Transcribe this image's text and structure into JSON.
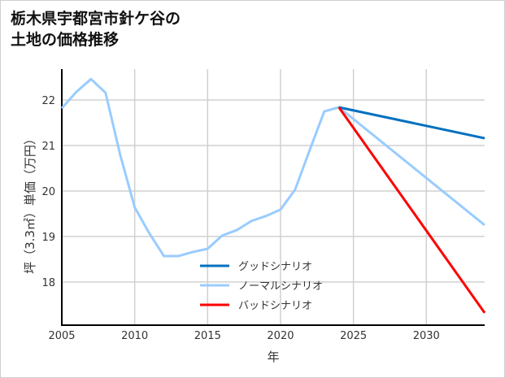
{
  "chart_data": {
    "type": "line",
    "title_lines": [
      "栃木県宇都宮市針ケ谷の",
      "土地の価格推移"
    ],
    "xlabel": "年",
    "ylabel": "坪（3.3㎡）単価（万円）",
    "xlim": [
      2005,
      2034
    ],
    "ylim": [
      17.05,
      22.68
    ],
    "xticks": [
      2005,
      2010,
      2015,
      2020,
      2025,
      2030
    ],
    "yticks": [
      18,
      19,
      20,
      21,
      22
    ],
    "grid": true,
    "legend_position": "bottom-center",
    "series": [
      {
        "name": "グッドシナリオ",
        "color": "#0070c0",
        "x": [
          2024,
          2034
        ],
        "y": [
          21.84,
          21.16
        ]
      },
      {
        "name": "ノーマルシナリオ",
        "color": "#99ccff",
        "x": [
          2005,
          2006,
          2007,
          2008,
          2009,
          2010,
          2011,
          2012,
          2013,
          2014,
          2015,
          2016,
          2017,
          2018,
          2019,
          2020,
          2021,
          2022,
          2023,
          2024,
          2034
        ],
        "y": [
          21.82,
          22.18,
          22.46,
          22.16,
          20.8,
          19.64,
          19.07,
          18.57,
          18.57,
          18.66,
          18.73,
          19.02,
          19.14,
          19.34,
          19.45,
          19.59,
          20.03,
          20.9,
          21.75,
          21.84,
          19.25
        ]
      },
      {
        "name": "バッドシナリオ",
        "color": "#ff0000",
        "x": [
          2024,
          2034
        ],
        "y": [
          21.84,
          17.32
        ]
      }
    ]
  }
}
